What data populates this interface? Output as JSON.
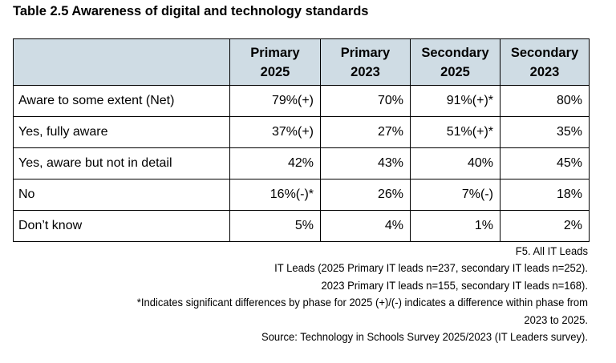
{
  "title": "Table 2.5 Awareness of digital and technology standards",
  "table": {
    "columns": [
      {
        "line1": "Primary",
        "line2": "2025"
      },
      {
        "line1": "Primary",
        "line2": "2023"
      },
      {
        "line1": "Secondary",
        "line2": "2025"
      },
      {
        "line1": "Secondary",
        "line2": "2023"
      }
    ],
    "rows": [
      {
        "label": "Aware to some extent (Net)",
        "values": [
          "79%(+)",
          "70%",
          "91%(+)*",
          "80%"
        ]
      },
      {
        "label": "Yes, fully aware",
        "values": [
          "37%(+)",
          "27%",
          "51%(+)*",
          "35%"
        ]
      },
      {
        "label": "Yes, aware but not in detail",
        "values": [
          "42%",
          "43%",
          "40%",
          "45%"
        ]
      },
      {
        "label": "No",
        "values": [
          "16%(-)*",
          "26%",
          "7%(-)",
          "18%"
        ]
      },
      {
        "label": "Don’t know",
        "values": [
          "5%",
          "4%",
          "1%",
          "2%"
        ]
      }
    ],
    "header_fill": "#cfdce4"
  },
  "notes": [
    "F5. All IT Leads",
    "IT Leads (2025 Primary IT leads n=237, secondary IT leads n=252).",
    "2023 Primary IT leads n=155, secondary IT leads n=168).",
    "*Indicates significant differences by phase for 2025 (+)/(-) indicates a difference within phase from",
    "2023 to 2025.",
    "Source: Technology in Schools Survey 2025/2023 (IT Leaders survey)."
  ]
}
